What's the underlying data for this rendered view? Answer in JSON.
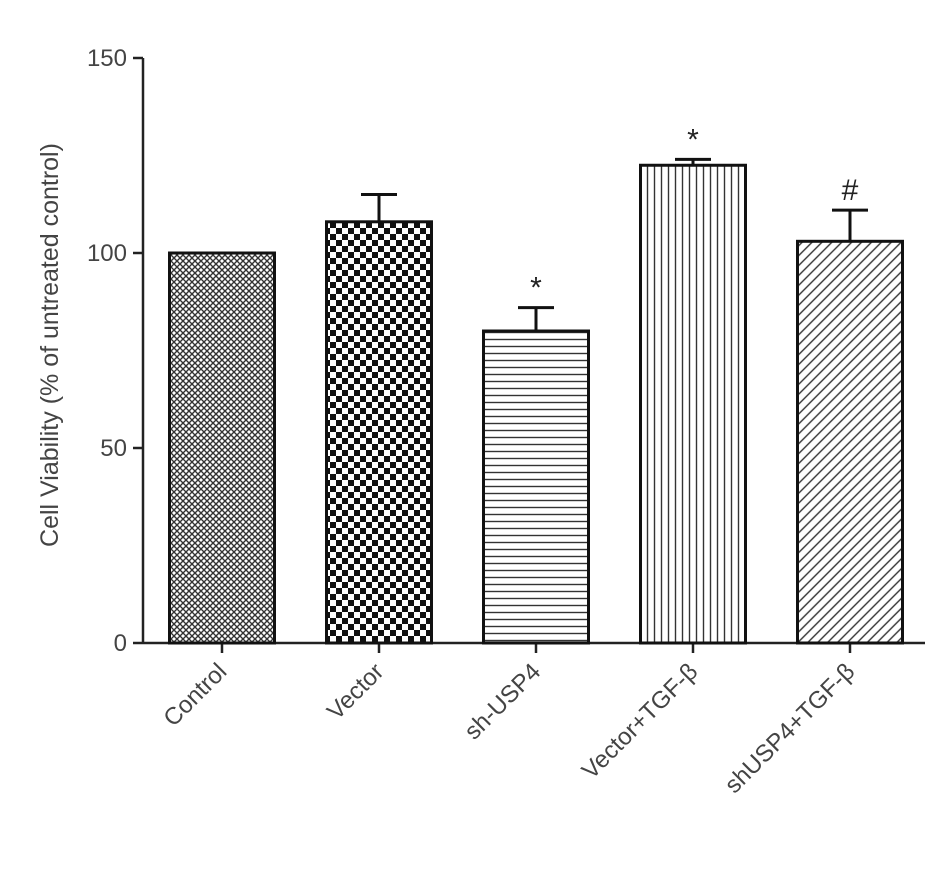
{
  "chart_data": {
    "type": "bar",
    "title": "",
    "xlabel": "",
    "ylabel": "Cell Viability (% of untreated control)",
    "ylim": [
      0,
      150
    ],
    "yticks": [
      0,
      50,
      100,
      150
    ],
    "grid": false,
    "categories": [
      "Control",
      "Vector",
      "sh-USP4",
      "Vector+TGF-β",
      "shUSP4+TGF-β"
    ],
    "values": [
      100,
      108,
      80,
      122.5,
      103
    ],
    "errors": [
      0,
      7,
      6,
      1.5,
      8
    ],
    "annotations": [
      "",
      "",
      "*",
      "*",
      "#"
    ],
    "patterns": [
      "fine-crosshatch",
      "checkerboard",
      "horizontal-lines",
      "vertical-lines",
      "diagonal-lines"
    ]
  }
}
